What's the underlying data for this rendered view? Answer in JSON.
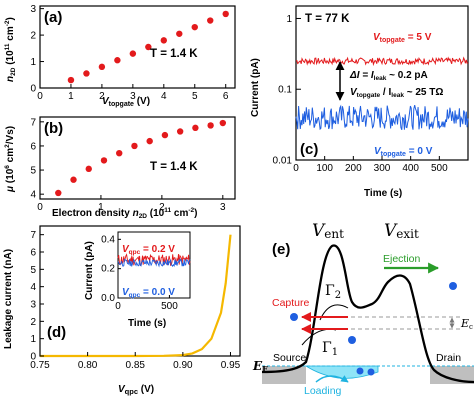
{
  "panel_a": {
    "label": "(a)",
    "annotation": "T = 1.4 K",
    "ylabel": "n2D (1011 cm-2)",
    "ylabel_main": "n",
    "ylabel_sub": "2D",
    "ylabel_units": " (10",
    "ylabel_exp": "11",
    "ylabel_tail": " cm",
    "ylabel_tail_exp": "-2",
    "ylabel_close": ")",
    "xlabel_main": "V",
    "xlabel_sub": "topgate",
    "xlabel_unit": " (V)",
    "xticks": [
      "0",
      "1",
      "2",
      "3",
      "4",
      "5",
      "6"
    ],
    "yticks": [
      "0",
      "1",
      "2",
      "3"
    ]
  },
  "panel_b": {
    "label": "(b)",
    "annotation": "T = 1.4 K",
    "ylabel_main": "μ",
    "ylabel_units": " (10",
    "ylabel_exp": "6",
    "ylabel_tail": " cm",
    "ylabel_tail_exp": "2",
    "ylabel_close": "/Vs)",
    "xlabel": "Electron density n2D (1011 cm-2)",
    "xlabel_main": "Electron density ",
    "xlabel_n": "n",
    "xlabel_sub": "2D",
    "xlabel_units": " (10",
    "xlabel_exp": "11",
    "xlabel_tail": " cm",
    "xlabel_tail_exp": "-2",
    "xlabel_close": ")",
    "xticks": [
      "0",
      "1",
      "2",
      "3"
    ],
    "yticks": [
      "4",
      "5",
      "6",
      "7"
    ]
  },
  "panel_c": {
    "label": "(c)",
    "annotation": "T = 77 K",
    "ylabel": "Current (pA)",
    "xlabel": "Time (s)",
    "xticks": [
      "0",
      "100",
      "200",
      "300",
      "400",
      "500"
    ],
    "yticks": [
      "1",
      "0.1",
      "0.01"
    ],
    "trace_top_label": "V",
    "trace_top_sub": "topgate",
    "trace_top_value": " = 5 V",
    "trace_bottom_label": "V",
    "trace_bottom_sub": "topgate",
    "trace_bottom_value": " = 0 V",
    "delta_line1_a": "ΔI = I",
    "delta_line1_sub": "leak",
    "delta_line1_b": " ~ 0.2 pA",
    "delta_line2_a": "V",
    "delta_line2_sub": "topgate",
    "delta_line2_b": " / I",
    "delta_line2_sub2": "leak",
    "delta_line2_c": " ~ 25 TΩ",
    "colors": {
      "top": "#e31a1c",
      "bottom": "#1f5fe0"
    }
  },
  "panel_d": {
    "label": "(d)",
    "ylabel": "Leakage current (nA)",
    "xlabel_main": "V",
    "xlabel_sub": "qpc",
    "xlabel_unit": " (V)",
    "xticks": [
      "0.75",
      "0.80",
      "0.85",
      "0.90",
      "0.95"
    ],
    "yticks": [
      "0",
      "1",
      "2",
      "3",
      "4",
      "5",
      "6",
      "7"
    ],
    "inset": {
      "ylabel": "Current (pA)",
      "xlabel": "Time (s)",
      "xticks": [
        "0",
        "500"
      ],
      "yticks": [
        "0.0",
        "0.2",
        "0.4"
      ],
      "red_label": "V",
      "red_sub": "qpc",
      "red_value": " = 0.2 V",
      "blue_label": "V",
      "blue_sub": "qpc",
      "blue_value": " = 0.0 V"
    },
    "colors": {
      "curve": "#f5b800"
    }
  },
  "panel_e": {
    "label": "(e)",
    "v_ent": "V",
    "v_ent_sub": "ent",
    "v_exit": "V",
    "v_exit_sub": "exit",
    "gamma2": "Γ",
    "gamma2_sub": "2",
    "gamma1": "Γ",
    "gamma1_sub": "1",
    "capture": "Capture",
    "ejection": "Ejection",
    "loading": "Loading",
    "source": "Source",
    "drain": "Drain",
    "ef": "E",
    "ef_sub": "F",
    "ec": "E",
    "ec_sub": "c",
    "colors": {
      "capture": "#e31a1c",
      "ejection": "#2a9d2a",
      "loading": "#1fb3e0",
      "dot": "#1f5fe0"
    }
  },
  "chart_data": [
    {
      "type": "scatter",
      "title": "(a)",
      "xlabel": "Vtopgate (V)",
      "ylabel": "n2D (10^11 cm^-2)",
      "xlim": [
        0,
        6.3
      ],
      "ylim": [
        0,
        3.1
      ],
      "series": [
        {
          "x": [
            1.0,
            1.5,
            2.0,
            2.5,
            3.0,
            3.5,
            4.0,
            4.5,
            5.0,
            5.5,
            6.0
          ],
          "y": [
            0.3,
            0.55,
            0.8,
            1.05,
            1.3,
            1.55,
            1.8,
            2.05,
            2.3,
            2.55,
            2.8
          ]
        }
      ]
    },
    {
      "type": "scatter",
      "title": "(b)",
      "xlabel": "Electron density n2D (10^11 cm^-2)",
      "ylabel": "μ (10^6 cm^2/Vs)",
      "xlim": [
        0,
        3.2
      ],
      "ylim": [
        3.8,
        7.2
      ],
      "series": [
        {
          "x": [
            0.3,
            0.55,
            0.8,
            1.05,
            1.3,
            1.55,
            1.8,
            2.05,
            2.3,
            2.55,
            2.8,
            3.0
          ],
          "y": [
            4.05,
            4.6,
            5.05,
            5.4,
            5.7,
            6.0,
            6.2,
            6.45,
            6.6,
            6.75,
            6.85,
            6.95
          ]
        }
      ]
    },
    {
      "type": "line",
      "title": "(c)",
      "xlabel": "Time (s)",
      "ylabel": "Current (pA)",
      "yscale": "log",
      "xlim": [
        0,
        600
      ],
      "ylim": [
        0.01,
        1.5
      ],
      "series": [
        {
          "name": "Vtopgate = 5 V",
          "mean": 0.25
        },
        {
          "name": "Vtopgate = 0 V",
          "mean": 0.04
        }
      ]
    },
    {
      "type": "line",
      "title": "(d)",
      "xlabel": "Vqpc (V)",
      "ylabel": "Leakage current (nA)",
      "xlim": [
        0.75,
        0.96
      ],
      "ylim": [
        0,
        7.5
      ],
      "series": [
        {
          "x": [
            0.75,
            0.8,
            0.85,
            0.88,
            0.9,
            0.91,
            0.92,
            0.93,
            0.94,
            0.945,
            0.95
          ],
          "y": [
            0.0,
            0.0,
            0.0,
            0.01,
            0.05,
            0.15,
            0.4,
            1.0,
            2.5,
            4.2,
            7.0
          ]
        }
      ]
    }
  ]
}
